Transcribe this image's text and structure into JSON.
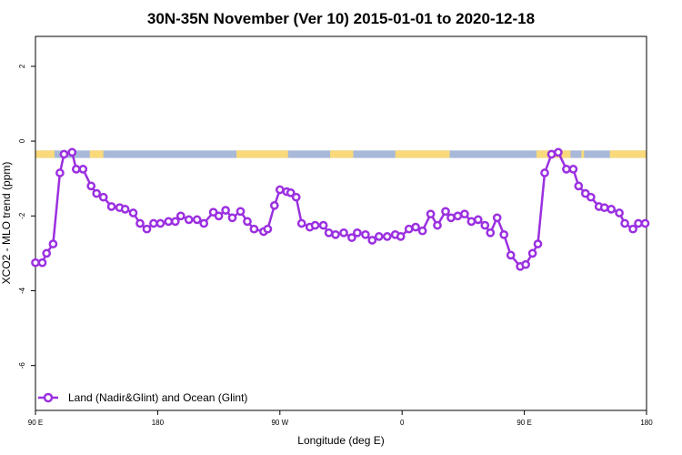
{
  "chart_data": {
    "type": "line",
    "title": "30N-35N November (Ver 10)   2015-01-01 to 2020-12-18",
    "xlabel": "Longitude (deg E)",
    "ylabel": "XCO2 - MLO trend (ppm)",
    "xlim": [
      90,
      540
    ],
    "ylim": [
      -7.2,
      2.8
    ],
    "x_ticks": [
      {
        "value": 90,
        "label": "90 E"
      },
      {
        "value": 180,
        "label": "180"
      },
      {
        "value": 270,
        "label": "90 W"
      },
      {
        "value": 360,
        "label": "0"
      },
      {
        "value": 450,
        "label": "90 E"
      },
      {
        "value": 540,
        "label": "180"
      }
    ],
    "y_ticks": [
      {
        "value": 2,
        "label": "2"
      },
      {
        "value": 0,
        "label": "0"
      },
      {
        "value": -2,
        "label": "-2"
      },
      {
        "value": -4,
        "label": "-4"
      },
      {
        "value": -6,
        "label": "-6"
      }
    ],
    "series": [
      {
        "name": "Land (Nadir&Glint) and Ocean (Glint)",
        "color": "#9b30e0",
        "x": [
          90,
          95,
          98.2,
          103,
          108,
          111,
          117,
          120,
          125,
          131,
          135,
          140,
          146,
          152,
          156,
          162,
          167,
          172,
          177,
          182,
          188,
          193,
          197,
          203,
          209,
          214,
          221,
          225,
          230,
          235,
          241,
          246,
          251,
          258,
          261,
          266,
          270,
          275,
          278,
          282,
          286,
          292,
          296,
          302,
          306,
          311,
          317,
          323,
          327,
          333,
          338,
          343,
          349,
          355,
          359,
          365,
          370,
          375,
          381,
          386,
          392,
          396,
          401,
          406,
          411,
          416,
          421,
          425,
          430,
          435,
          440,
          447,
          451,
          456,
          460,
          465,
          470,
          475,
          481,
          486,
          490,
          495,
          499,
          505,
          509,
          514,
          520,
          524,
          530,
          534,
          539
        ],
        "y": [
          -3.25,
          -3.25,
          -3,
          -2.75,
          -0.85,
          -0.35,
          -0.3,
          -0.75,
          -0.75,
          -1.2,
          -1.4,
          -1.5,
          -1.75,
          -1.78,
          -1.82,
          -1.92,
          -2.2,
          -2.35,
          -2.2,
          -2.2,
          -2.15,
          -2.15,
          -2,
          -2.1,
          -2.1,
          -2.2,
          -1.9,
          -2,
          -1.85,
          -2.05,
          -1.88,
          -2.15,
          -2.35,
          -2.42,
          -2.35,
          -1.72,
          -1.3,
          -1.35,
          -1.38,
          -1.5,
          -2.2,
          -2.3,
          -2.25,
          -2.25,
          -2.45,
          -2.5,
          -2.45,
          -2.58,
          -2.45,
          -2.5,
          -2.65,
          -2.55,
          -2.55,
          -2.5,
          -2.55,
          -2.35,
          -2.3,
          -2.4,
          -1.95,
          -2.25,
          -1.88,
          -2.05,
          -2,
          -1.95,
          -2.15,
          -2.1,
          -2.25,
          -2.45,
          -2.05,
          -2.5,
          -3.05,
          -3.35,
          -3.3,
          -3,
          -2.75,
          -0.85,
          -0.35,
          -0.3,
          -0.75,
          -0.75,
          -1.2,
          -1.4,
          -1.5,
          -1.75,
          -1.78,
          -1.82,
          -1.92,
          -2.2,
          -2.35,
          -2.2,
          -2.2
        ]
      }
    ],
    "legend": {
      "position": "bottom-left",
      "label": "Land (Nadir&Glint) and Ocean (Glint)"
    },
    "land_ocean_strip": {
      "y_range": [
        -0.45,
        -0.25
      ],
      "ocean_color": "#a7b8d8",
      "land_color": "#f9d97a",
      "land_segments": [
        [
          90,
          104
        ],
        [
          130,
          140
        ],
        [
          238,
          276
        ],
        [
          307,
          324
        ],
        [
          355,
          395
        ],
        [
          459,
          484
        ],
        [
          492,
          494
        ],
        [
          513,
          540
        ]
      ]
    }
  }
}
